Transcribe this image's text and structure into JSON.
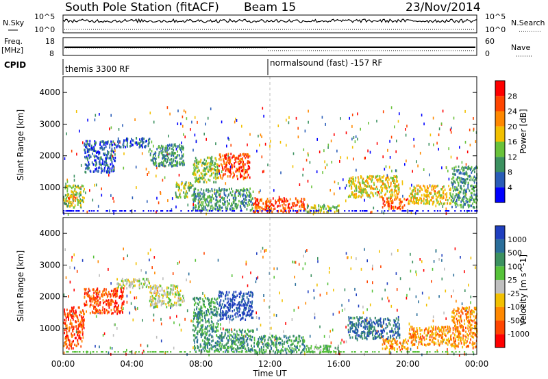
{
  "header": {
    "station": "South Pole Station (fitACF)",
    "beam": "Beam 15",
    "date": "23/Nov/2014"
  },
  "strips": {
    "nsky_label": "N.Sky",
    "nsearch_label": "N.Search",
    "freq_label_1": "Freq.",
    "freq_label_2": "[MHz]",
    "nave_label": "Nave",
    "cpid_label": "CPID",
    "left_ticks_top": [
      "10^5",
      "10^0"
    ],
    "right_ticks_top": [
      "10^5",
      "10^0"
    ],
    "freq_ticks": [
      "18",
      "8"
    ],
    "nave_ticks": [
      "60",
      "0"
    ],
    "cpid_segments": [
      "themis 3300 RF",
      "normalsound (fast) -157 RF"
    ]
  },
  "chart_data": [
    {
      "type": "heatmap",
      "title": "",
      "xlabel": "",
      "ylabel": "Slant Range [km]",
      "xlim": [
        0,
        24
      ],
      "ylim": [
        180,
        4500
      ],
      "x_ticks": [
        "00:00",
        "04:00",
        "08:00",
        "12:00",
        "16:00",
        "20:00",
        "00:00"
      ],
      "y_ticks": [
        "1000",
        "2000",
        "3000",
        "4000"
      ],
      "colorbar": {
        "label": "Power [dB]",
        "ticks": [
          "4",
          "8",
          "12",
          "16",
          "20",
          "24",
          "28"
        ],
        "colors": [
          "#0000ff",
          "#2a5db8",
          "#3c9160",
          "#69c23a",
          "#f2c000",
          "#ff8800",
          "#ff4500",
          "#ff0000"
        ]
      },
      "regions": [
        {
          "t": [
            0.0,
            1.2
          ],
          "r": [
            400,
            1100
          ],
          "level": 3
        },
        {
          "t": [
            0.2,
            0.8
          ],
          "r": [
            550,
            800
          ],
          "level": 5
        },
        {
          "t": [
            1.2,
            3.0
          ],
          "r": [
            1500,
            2500
          ],
          "level": 1
        },
        {
          "t": [
            3.0,
            5.0
          ],
          "r": [
            2300,
            2600
          ],
          "level": 1
        },
        {
          "t": [
            5.0,
            7.0
          ],
          "r": [
            1700,
            2400
          ],
          "level": 2
        },
        {
          "t": [
            6.5,
            7.5
          ],
          "r": [
            700,
            1200
          ],
          "level": 3
        },
        {
          "t": [
            7.5,
            9.0
          ],
          "r": [
            1200,
            2000
          ],
          "level": 3
        },
        {
          "t": [
            9.0,
            10.8
          ],
          "r": [
            1300,
            2100
          ],
          "level": 6
        },
        {
          "t": [
            7.5,
            11.0
          ],
          "r": [
            300,
            1000
          ],
          "level": 2
        },
        {
          "t": [
            11.0,
            14.0
          ],
          "r": [
            250,
            700
          ],
          "level": 6
        },
        {
          "t": [
            14.0,
            16.0
          ],
          "r": [
            250,
            500
          ],
          "level": 3
        },
        {
          "t": [
            16.5,
            19.5
          ],
          "r": [
            700,
            1400
          ],
          "level": 4
        },
        {
          "t": [
            18.5,
            20.0
          ],
          "r": [
            350,
            700
          ],
          "level": 6
        },
        {
          "t": [
            20.0,
            22.5
          ],
          "r": [
            500,
            1100
          ],
          "level": 4
        },
        {
          "t": [
            22.5,
            24.0
          ],
          "r": [
            400,
            1700
          ],
          "level": 2
        }
      ]
    },
    {
      "type": "heatmap",
      "title": "",
      "xlabel": "Time UT",
      "ylabel": "Slant Range [km]",
      "xlim": [
        0,
        24
      ],
      "ylim": [
        180,
        4500
      ],
      "x_ticks": [
        "00:00",
        "04:00",
        "08:00",
        "12:00",
        "16:00",
        "20:00",
        "00:00"
      ],
      "y_ticks": [
        "1000",
        "2000",
        "3000",
        "4000"
      ],
      "colorbar": {
        "label": "Velocity [m s^-1]",
        "ticks": [
          "1000",
          "500",
          "100",
          "25",
          "-25",
          "-100",
          "-500",
          "-1000"
        ],
        "colors": [
          "#1f3fbf",
          "#2a6e9a",
          "#3c9160",
          "#57c23a",
          "#bfbfbf",
          "#f2c000",
          "#ff8800",
          "#ff4500",
          "#ff0000"
        ]
      },
      "regions": [
        {
          "t": [
            0.0,
            1.2
          ],
          "r": [
            400,
            1700
          ],
          "level": 7
        },
        {
          "t": [
            1.2,
            3.5
          ],
          "r": [
            1500,
            2300
          ],
          "level": 7
        },
        {
          "t": [
            3.0,
            5.0
          ],
          "r": [
            2300,
            2600
          ],
          "level": 4
        },
        {
          "t": [
            5.0,
            7.0
          ],
          "r": [
            1700,
            2400
          ],
          "level": 4
        },
        {
          "t": [
            7.5,
            9.0
          ],
          "r": [
            1000,
            2000
          ],
          "level": 2
        },
        {
          "t": [
            9.0,
            11.0
          ],
          "r": [
            1300,
            2200
          ],
          "level": 0
        },
        {
          "t": [
            7.5,
            11.0
          ],
          "r": [
            300,
            1000
          ],
          "level": 2
        },
        {
          "t": [
            11.0,
            14.0
          ],
          "r": [
            250,
            800
          ],
          "level": 2
        },
        {
          "t": [
            14.0,
            16.0
          ],
          "r": [
            250,
            500
          ],
          "level": 3
        },
        {
          "t": [
            16.5,
            19.5
          ],
          "r": [
            700,
            1400
          ],
          "level": 1
        },
        {
          "t": [
            18.5,
            20.0
          ],
          "r": [
            350,
            700
          ],
          "level": 6
        },
        {
          "t": [
            20.0,
            22.5
          ],
          "r": [
            500,
            1100
          ],
          "level": 6
        },
        {
          "t": [
            22.5,
            24.0
          ],
          "r": [
            400,
            1700
          ],
          "level": 6
        }
      ]
    }
  ]
}
